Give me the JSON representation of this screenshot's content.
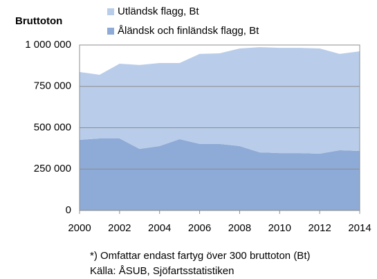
{
  "chart_data": {
    "type": "area",
    "stacked": true,
    "y_label": "Bruttoton",
    "x": [
      2000,
      2001,
      2002,
      2003,
      2004,
      2005,
      2006,
      2007,
      2008,
      2009,
      2010,
      2011,
      2012,
      2013,
      2014
    ],
    "series": [
      {
        "name": "Åländsk och finländsk flagg, Bt",
        "color": "#8eaad6",
        "values": [
          427000,
          435000,
          435000,
          372000,
          389000,
          431000,
          402000,
          402000,
          389000,
          351000,
          347000,
          347000,
          343000,
          364000,
          360000
        ]
      },
      {
        "name": "Utländsk flagg, Bt",
        "color": "#b9cdea",
        "values": [
          410000,
          385000,
          452000,
          507000,
          502000,
          460000,
          544000,
          548000,
          590000,
          636000,
          636000,
          636000,
          636000,
          582000,
          602000
        ]
      }
    ],
    "xlim": [
      2000,
      2014
    ],
    "xticks": [
      2000,
      2002,
      2004,
      2006,
      2008,
      2010,
      2012,
      2014
    ],
    "ylim": [
      0,
      1000000
    ],
    "yticks": [
      0,
      {
        "value": 250000,
        "label": "250 000"
      },
      {
        "value": 500000,
        "label": "500 000"
      },
      {
        "value": 750000,
        "label": "750 000"
      },
      {
        "value": 1000000,
        "label": "1 000 000"
      }
    ],
    "grid": true,
    "notes": [
      "*) Omfattar endast fartyg över 300 bruttoton (Bt)",
      "Källa: ÅSUB, Sjöfartsstatistiken"
    ]
  }
}
